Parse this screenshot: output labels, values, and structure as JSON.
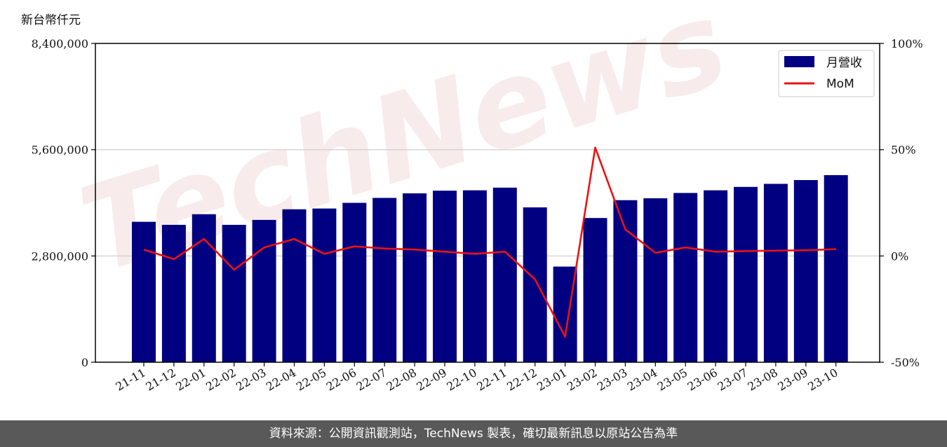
{
  "unit_label": "新台幣仟元",
  "footer_text": "資料來源：公開資訊觀測站，TechNews 製表，確切最新訊息以原站公告為準",
  "watermark_text": "TechNews",
  "colors": {
    "bar": "#000080",
    "line": "#ee1111",
    "grid": "#cccccc",
    "footer_bg": "#595959",
    "watermark": "#f5dede"
  },
  "chart_data": {
    "type": "bar",
    "categories": [
      "21-11",
      "21-12",
      "22-01",
      "22-02",
      "22-03",
      "22-04",
      "22-05",
      "22-06",
      "22-07",
      "22-08",
      "22-09",
      "22-10",
      "22-11",
      "22-12",
      "23-01",
      "23-02",
      "23-03",
      "23-04",
      "23-05",
      "23-06",
      "23-07",
      "23-08",
      "23-09",
      "23-10"
    ],
    "series": [
      {
        "name": "月營收",
        "type": "bar",
        "axis": "left",
        "values": [
          3700000,
          3620000,
          3900000,
          3620000,
          3750000,
          4030000,
          4050000,
          4200000,
          4330000,
          4450000,
          4520000,
          4530000,
          4600000,
          4080000,
          2520000,
          3800000,
          4270000,
          4320000,
          4460000,
          4530000,
          4620000,
          4700000,
          4800000,
          4930000
        ]
      },
      {
        "name": "MoM",
        "type": "line",
        "axis": "right",
        "values": [
          3,
          -1.5,
          8,
          -6.5,
          4,
          8,
          1,
          4.5,
          3.5,
          3,
          2,
          1,
          2,
          -11,
          -38,
          51,
          12.5,
          1.5,
          4,
          2,
          2.3,
          2.5,
          2.7,
          3.2
        ]
      }
    ],
    "left_axis": {
      "ylim": [
        0,
        8400000
      ],
      "ticks": [
        0,
        2800000,
        5600000,
        8400000
      ],
      "tick_labels": [
        "0",
        "2,800,000",
        "5,600,000",
        "8,400,000"
      ]
    },
    "right_axis": {
      "ylim": [
        -50,
        100
      ],
      "ticks": [
        -50,
        0,
        50,
        100
      ],
      "tick_labels": [
        "-50%",
        "0%",
        "50%",
        "100%"
      ]
    },
    "grid": "horizontal",
    "legend_position": "top-right"
  }
}
